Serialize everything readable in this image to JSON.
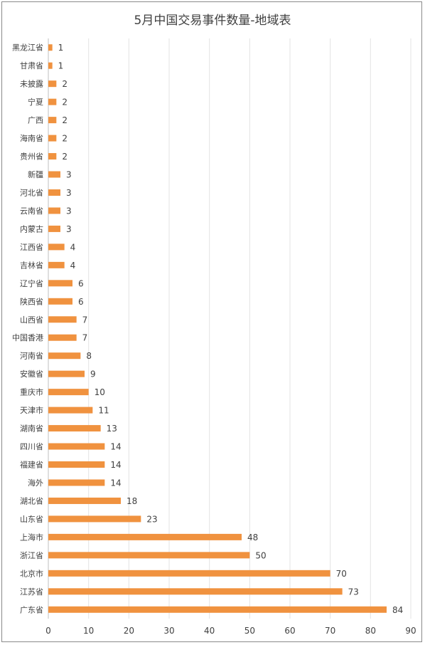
{
  "chart_data": {
    "type": "bar",
    "orientation": "horizontal",
    "title": "5月中国交易事件数量-地域表",
    "categories": [
      "黑龙江省",
      "甘肃省",
      "未披露",
      "宁夏",
      "广西",
      "海南省",
      "贵州省",
      "新疆",
      "河北省",
      "云南省",
      "内蒙古",
      "江西省",
      "吉林省",
      "辽宁省",
      "陕西省",
      "山西省",
      "中国香港",
      "河南省",
      "安徽省",
      "重庆市",
      "天津市",
      "湖南省",
      "四川省",
      "福建省",
      "海外",
      "湖北省",
      "山东省",
      "上海市",
      "浙江省",
      "北京市",
      "江苏省",
      "广东省"
    ],
    "values": [
      1,
      1,
      2,
      2,
      2,
      2,
      2,
      3,
      3,
      3,
      3,
      4,
      4,
      6,
      6,
      7,
      7,
      8,
      9,
      10,
      11,
      13,
      14,
      14,
      14,
      18,
      23,
      48,
      50,
      70,
      73,
      84
    ],
    "xlim": [
      0,
      90
    ],
    "xticks": [
      0,
      10,
      20,
      30,
      40,
      50,
      60,
      70,
      80,
      90
    ],
    "grid": true,
    "legend": "none",
    "data_labels": true,
    "bar_color": "#F0923F",
    "grid_color": "#E3E3E3",
    "text_color": "#404040"
  }
}
